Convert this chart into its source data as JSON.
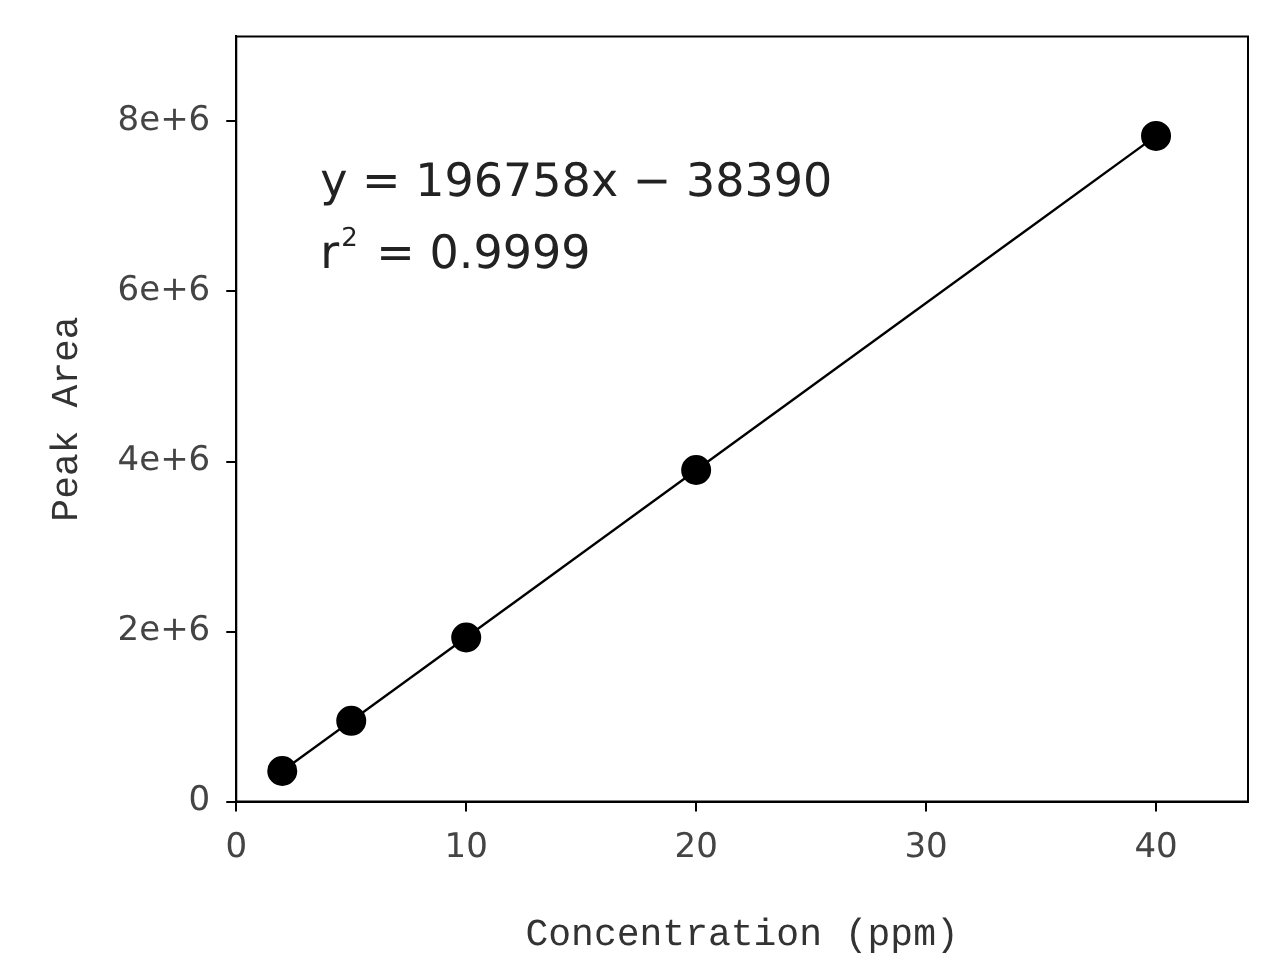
{
  "chart_data": {
    "type": "scatter",
    "xlabel": "Concentration (ppm)",
    "ylabel": "Peak Area",
    "x": [
      2,
      5,
      10,
      20,
      40
    ],
    "series": [
      {
        "color": "#000000",
        "marker": "circle",
        "values": [
          360000,
          950000,
          1930000,
          3900000,
          7830000
        ]
      },
      {
        "type": "line",
        "color": "#000000",
        "marker": "none",
        "x": [
          2,
          40
        ],
        "values": [
          360000,
          7830000
        ]
      }
    ],
    "xlim": [
      0,
      44
    ],
    "xticks": [
      0,
      10,
      20,
      30,
      40
    ],
    "ylim": [
      0,
      9000000
    ],
    "yticks": [
      {
        "value": 0,
        "label": "0"
      },
      {
        "value": 2000000,
        "label": "2e+6"
      },
      {
        "value": 4000000,
        "label": "4e+6"
      },
      {
        "value": 6000000,
        "label": "6e+6"
      },
      {
        "value": 8000000,
        "label": "8e+6"
      }
    ],
    "annotations": [
      "y = 196758x − 38390",
      "r$^{2}$ = 0.9999"
    ],
    "grid": false,
    "legend": false
  }
}
